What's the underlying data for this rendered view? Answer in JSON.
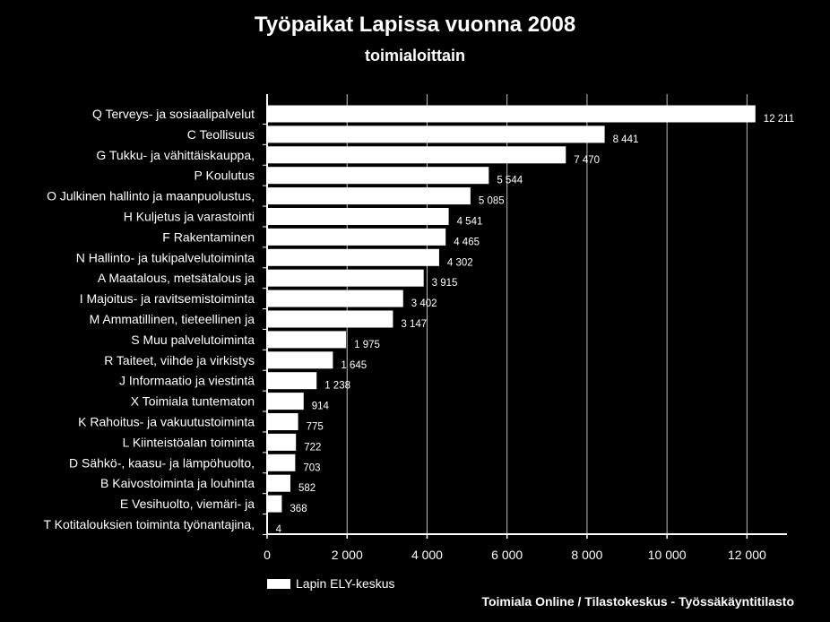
{
  "chart_data": {
    "type": "bar",
    "orientation": "horizontal",
    "title": "Työpaikat Lapissa vuonna 2008",
    "subtitle": "toimialoittain",
    "categories": [
      "Q Terveys- ja sosiaalipalvelut",
      "C Teollisuus",
      "G Tukku- ja vähittäiskauppa,",
      "P Koulutus",
      "O Julkinen hallinto ja maanpuolustus,",
      "H Kuljetus ja varastointi",
      "F Rakentaminen",
      "N Hallinto- ja tukipalvelutoiminta",
      "A Maatalous, metsätalous ja",
      "I Majoitus- ja ravitsemistoiminta",
      "M Ammatillinen, tieteellinen ja",
      "S Muu palvelutoiminta",
      "R Taiteet, viihde ja virkistys",
      "J Informaatio ja viestintä",
      "X Toimiala tuntematon",
      "K Rahoitus- ja vakuutustoiminta",
      "L Kiinteistöalan toiminta",
      "D Sähkö-, kaasu- ja lämpöhuolto,",
      "B Kaivostoiminta ja louhinta",
      "E Vesihuolto, viemäri- ja",
      "T Kotitalouksien toiminta työnantajina,"
    ],
    "series": [
      {
        "name": "Lapin ELY-keskus",
        "values": [
          12211,
          8441,
          7470,
          5544,
          5085,
          4541,
          4465,
          4302,
          3915,
          3402,
          3147,
          1975,
          1645,
          1238,
          914,
          775,
          722,
          703,
          582,
          368,
          4
        ],
        "value_labels": [
          "12 211",
          "8 441",
          "7 470",
          "5 544",
          "5 085",
          "4 541",
          "4 465",
          "4 302",
          "3 915",
          "3 402",
          "3 147",
          "1 975",
          "1 645",
          "1 238",
          "914",
          "775",
          "722",
          "703",
          "582",
          "368",
          "4"
        ],
        "color": "#ffffff"
      }
    ],
    "xlim": [
      0,
      13000
    ],
    "xticks": [
      0,
      2000,
      4000,
      6000,
      8000,
      10000,
      12000
    ],
    "xtick_labels": [
      "0",
      "2 000",
      "4 000",
      "6 000",
      "8 000",
      "10 000",
      "12 000"
    ],
    "grid": "vertical",
    "legend": "bottom-left",
    "source": "Toimiala Online / Tilastokeskus - Työssäkäyntitilasto",
    "background": "#000000",
    "bar_color": "#ffffff",
    "grid_color": "#bfbfbf"
  }
}
